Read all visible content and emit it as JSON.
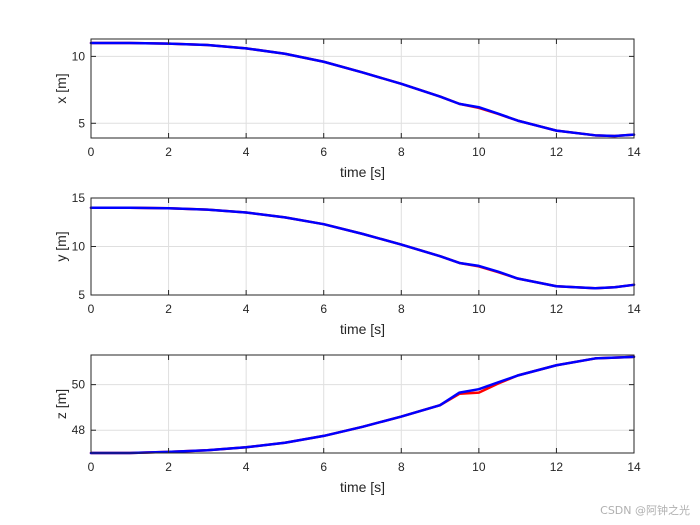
{
  "chart_data": [
    {
      "type": "line",
      "xlabel": "time [s]",
      "ylabel": "x [m]",
      "xlim": [
        0,
        14
      ],
      "ylim": [
        3.9,
        11.3
      ],
      "xticks": [
        0,
        2,
        4,
        6,
        8,
        10,
        12,
        14
      ],
      "yticks": [
        5,
        10
      ],
      "grid": true,
      "series": [
        {
          "color": "#ff0000",
          "x": [
            0,
            1,
            2,
            3,
            4,
            5,
            6,
            7,
            8,
            9,
            9.5,
            10,
            10.5,
            11,
            12,
            13,
            13.5,
            14
          ],
          "y": [
            11.0,
            11.0,
            10.95,
            10.85,
            10.6,
            10.2,
            9.6,
            8.8,
            7.95,
            7.0,
            6.45,
            6.15,
            5.7,
            5.2,
            4.45,
            4.1,
            4.05,
            4.15
          ]
        },
        {
          "color": "#0000ff",
          "x": [
            0,
            1,
            2,
            3,
            4,
            5,
            6,
            7,
            8,
            9,
            9.5,
            10,
            10.5,
            11,
            12,
            13,
            13.5,
            14
          ],
          "y": [
            11.0,
            11.0,
            10.95,
            10.85,
            10.6,
            10.2,
            9.6,
            8.8,
            7.95,
            7.0,
            6.45,
            6.2,
            5.72,
            5.2,
            4.45,
            4.1,
            4.05,
            4.15
          ]
        }
      ]
    },
    {
      "type": "line",
      "xlabel": "time [s]",
      "ylabel": "y [m]",
      "xlim": [
        0,
        14
      ],
      "ylim": [
        5,
        15
      ],
      "xticks": [
        0,
        2,
        4,
        6,
        8,
        10,
        12,
        14
      ],
      "yticks": [
        5,
        10,
        15
      ],
      "grid": true,
      "series": [
        {
          "color": "#ff0000",
          "x": [
            0,
            1,
            2,
            3,
            4,
            5,
            6,
            7,
            8,
            9,
            9.5,
            10,
            10.5,
            11,
            12,
            13,
            13.5,
            14
          ],
          "y": [
            14.0,
            14.0,
            13.95,
            13.8,
            13.5,
            13.0,
            12.3,
            11.3,
            10.2,
            9.0,
            8.3,
            7.95,
            7.35,
            6.7,
            5.9,
            5.7,
            5.8,
            6.05
          ]
        },
        {
          "color": "#0000ff",
          "x": [
            0,
            1,
            2,
            3,
            4,
            5,
            6,
            7,
            8,
            9,
            9.5,
            10,
            10.5,
            11,
            12,
            13,
            13.5,
            14
          ],
          "y": [
            14.0,
            14.0,
            13.95,
            13.8,
            13.5,
            13.0,
            12.3,
            11.3,
            10.2,
            9.0,
            8.3,
            8.0,
            7.4,
            6.7,
            5.9,
            5.7,
            5.8,
            6.05
          ]
        }
      ]
    },
    {
      "type": "line",
      "xlabel": "time [s]",
      "ylabel": "z [m]",
      "xlim": [
        0,
        14
      ],
      "ylim": [
        47.0,
        51.3
      ],
      "xticks": [
        0,
        2,
        4,
        6,
        8,
        10,
        12,
        14
      ],
      "yticks": [
        48,
        50
      ],
      "grid": true,
      "series": [
        {
          "color": "#ff0000",
          "x": [
            0,
            1,
            2,
            3,
            4,
            5,
            6,
            7,
            8,
            9,
            9.5,
            10,
            10.5,
            11,
            12,
            13,
            14
          ],
          "y": [
            47.0,
            47.0,
            47.05,
            47.12,
            47.25,
            47.45,
            47.75,
            48.15,
            48.6,
            49.1,
            49.6,
            49.65,
            50.05,
            50.4,
            50.85,
            51.15,
            51.22
          ]
        },
        {
          "color": "#0000ff",
          "x": [
            0,
            1,
            2,
            3,
            4,
            5,
            6,
            7,
            8,
            9,
            9.5,
            10,
            10.5,
            11,
            12,
            13,
            14
          ],
          "y": [
            47.0,
            47.0,
            47.05,
            47.12,
            47.25,
            47.45,
            47.75,
            48.15,
            48.6,
            49.1,
            49.65,
            49.8,
            50.1,
            50.4,
            50.85,
            51.15,
            51.22
          ]
        }
      ]
    }
  ],
  "watermark": "CSDN @阿钟之光"
}
